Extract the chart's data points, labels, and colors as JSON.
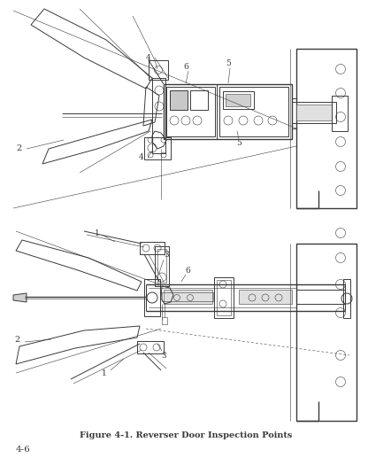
{
  "bg_color": "#ffffff",
  "line_color": "#3a3a3a",
  "title": "Figure 4-1. Reverser Door Inspection Points",
  "page_number": "4-6",
  "title_fontsize": 7.0,
  "page_num_fontsize": 7.5
}
